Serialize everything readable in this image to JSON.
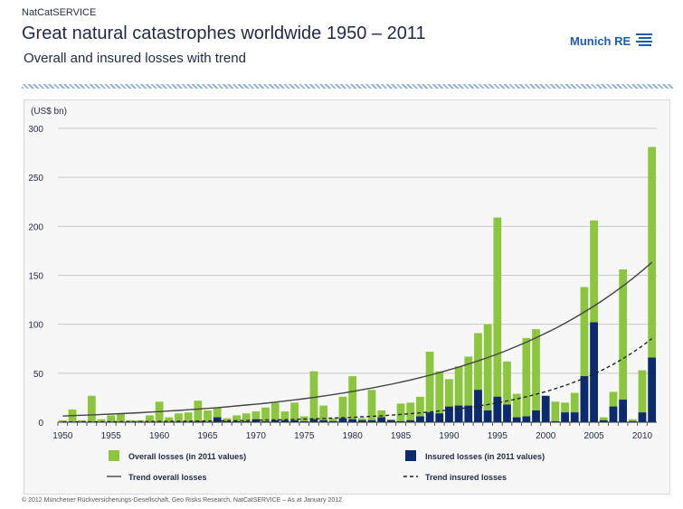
{
  "header": {
    "brand_small": "NatCatSERVICE",
    "title": "Great natural catastrophes worldwide 1950 – 2011",
    "subtitle": "Overall and insured losses with trend",
    "logo_text": "Munich RE"
  },
  "footer": {
    "text": "© 2012 Münchener Rückversicherungs-Gesellschaft, Geo Risks Research, NatCatSERVICE – As at January 2012"
  },
  "colors": {
    "overall": "#8cc63f",
    "insured": "#0b2a6f",
    "trend_overall": "#444444",
    "trend_insured": "#222222",
    "grid": "#c9c9c9"
  },
  "chart_data": {
    "type": "bar",
    "unit_label": "(US$ bn)",
    "ylim": [
      0,
      300
    ],
    "yticks": [
      0,
      50,
      100,
      150,
      200,
      250,
      300
    ],
    "x_tick_labels": [
      "1950",
      "1955",
      "1960",
      "1965",
      "1970",
      "1975",
      "1980",
      "1985",
      "1990",
      "1995",
      "2000",
      "2005",
      "2010"
    ],
    "grid": true,
    "legend_position": "bottom",
    "categories": [
      1950,
      1951,
      1952,
      1953,
      1954,
      1955,
      1956,
      1957,
      1958,
      1959,
      1960,
      1961,
      1962,
      1963,
      1964,
      1965,
      1966,
      1967,
      1968,
      1969,
      1970,
      1971,
      1972,
      1973,
      1974,
      1975,
      1976,
      1977,
      1978,
      1979,
      1980,
      1981,
      1982,
      1983,
      1984,
      1985,
      1986,
      1987,
      1988,
      1989,
      1990,
      1991,
      1992,
      1993,
      1994,
      1995,
      1996,
      1997,
      1998,
      1999,
      2000,
      2001,
      2002,
      2003,
      2004,
      2005,
      2006,
      2007,
      2008,
      2009,
      2010,
      2011
    ],
    "series": [
      {
        "name": "Overall losses (in 2011 values)",
        "values": [
          2,
          13,
          2,
          27,
          3,
          7,
          9,
          2,
          2,
          7,
          21,
          5,
          9,
          10,
          22,
          12,
          15,
          4,
          7,
          9,
          11,
          15,
          20,
          11,
          20,
          6,
          52,
          17,
          4,
          26,
          47,
          4,
          33,
          12,
          3,
          19,
          20,
          26,
          72,
          52,
          44,
          57,
          67,
          91,
          100,
          209,
          62,
          29,
          86,
          95,
          1,
          21,
          20,
          30,
          138,
          206,
          5,
          31,
          156,
          3,
          53,
          281
        ]
      },
      {
        "name": "Insured losses (in 2011 values)",
        "values": [
          0,
          0,
          0,
          0,
          0,
          0,
          0,
          0,
          0,
          0,
          0,
          0,
          0,
          0,
          1,
          0,
          5,
          1,
          1,
          1,
          3,
          1,
          2,
          2,
          2,
          1,
          3,
          2,
          1,
          4,
          3,
          2,
          2,
          5,
          2,
          1,
          2,
          6,
          10,
          9,
          16,
          17,
          17,
          33,
          12,
          26,
          18,
          5,
          6,
          12,
          27,
          1,
          10,
          10,
          47,
          102,
          2,
          16,
          23,
          1,
          10,
          66
        ]
      },
      {
        "name": "Trend overall losses",
        "values": [
          6.3,
          6.7,
          7.1,
          7.5,
          7.9,
          8.3,
          8.8,
          9.2,
          9.7,
          10.3,
          10.8,
          11.4,
          12.0,
          12.7,
          13.4,
          14.1,
          14.9,
          15.7,
          16.6,
          17.5,
          18.4,
          19.4,
          20.5,
          21.6,
          22.8,
          24.0,
          25.3,
          26.7,
          28.2,
          29.7,
          31.4,
          33.1,
          34.9,
          36.8,
          38.8,
          40.9,
          43.1,
          45.5,
          48.0,
          50.6,
          53.4,
          56.3,
          59.4,
          62.6,
          66.0,
          69.6,
          73.4,
          77.5,
          81.7,
          86.2,
          90.9,
          95.8,
          101.1,
          106.6,
          112.5,
          118.6,
          125.1,
          131.9,
          139.1,
          146.7,
          154.8,
          163.2
        ]
      },
      {
        "name": "Trend insured losses",
        "values": [
          0.3,
          0.3,
          0.4,
          0.4,
          0.4,
          0.5,
          0.5,
          0.6,
          0.6,
          0.7,
          0.8,
          0.8,
          0.9,
          1.0,
          1.1,
          1.2,
          1.4,
          1.5,
          1.6,
          1.8,
          2.0,
          2.2,
          2.4,
          2.6,
          2.9,
          3.2,
          3.5,
          3.8,
          4.2,
          4.6,
          5.0,
          5.5,
          6.0,
          6.6,
          7.2,
          7.9,
          8.7,
          9.5,
          10.4,
          11.4,
          12.5,
          13.7,
          15.0,
          16.4,
          18.0,
          19.8,
          21.7,
          23.7,
          26.0,
          28.5,
          31.2,
          34.2,
          37.5,
          41.1,
          45.0,
          49.3,
          54.0,
          59.2,
          64.9,
          71.1,
          77.9,
          85.4
        ]
      }
    ]
  }
}
